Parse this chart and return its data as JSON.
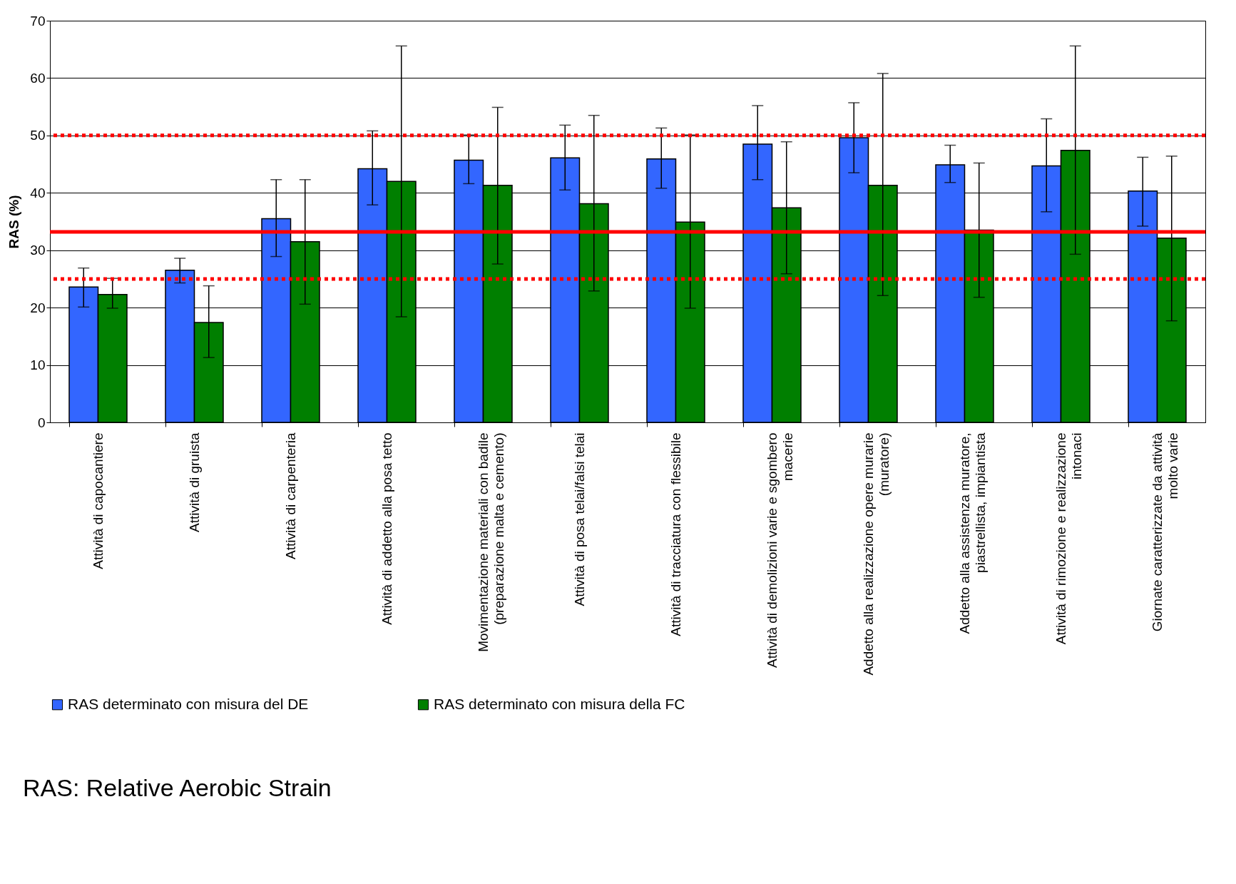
{
  "chart_data": {
    "type": "bar",
    "ylabel": "RAS (%)",
    "categories": [
      "Attività di capocantiere",
      "Attività di gruista",
      "Attività di carpenteria",
      "Attività di addetto alla posa tetto",
      "Movimentazione materiali con badile (preparazione malta e cemento)",
      "Attività di posa telai/falsi telai",
      "Attività di tracciatura con flessibile",
      "Attività di demolizioni varie e sgombero macerie",
      "Addetto alla realizzazione opere murarie (muratore)",
      "Addetto alla assistenza muratore, piastrellista, impiantista",
      "Attività di rimozione e realizzazione intonaci",
      "Giornate caratterizzate da attività molto varie"
    ],
    "series": [
      {
        "name": "RAS determinato con misura del DE",
        "color": "#3366ff",
        "values": [
          23.6,
          26.5,
          35.5,
          44.2,
          45.7,
          46.1,
          45.9,
          48.5,
          49.6,
          44.9,
          44.7,
          40.3
        ],
        "errors": [
          [
            20.1,
            26.9
          ],
          [
            24.3,
            28.6
          ],
          [
            28.9,
            42.3
          ],
          [
            37.9,
            50.8
          ],
          [
            41.6,
            50.1
          ],
          [
            40.5,
            51.8
          ],
          [
            40.8,
            51.3
          ],
          [
            42.3,
            55.2
          ],
          [
            43.5,
            55.7
          ],
          [
            41.8,
            48.3
          ],
          [
            36.7,
            52.9
          ],
          [
            34.2,
            46.2
          ]
        ]
      },
      {
        "name": "RAS determinato con misura della FC",
        "color": "#007f00",
        "values": [
          22.3,
          17.4,
          31.5,
          42.0,
          41.3,
          38.1,
          34.9,
          37.4,
          41.3,
          33.5,
          47.4,
          32.1
        ],
        "errors": [
          [
            19.9,
            25.1
          ],
          [
            11.3,
            23.8
          ],
          [
            20.6,
            42.3
          ],
          [
            18.4,
            65.6
          ],
          [
            27.6,
            54.9
          ],
          [
            22.9,
            53.5
          ],
          [
            19.9,
            50.1
          ],
          [
            25.9,
            48.9
          ],
          [
            22.1,
            60.8
          ],
          [
            21.8,
            45.2
          ],
          [
            29.3,
            65.6
          ],
          [
            17.7,
            46.4
          ]
        ]
      }
    ],
    "ylim": [
      0,
      70
    ],
    "yticks": [
      0,
      10,
      20,
      30,
      40,
      50,
      60,
      70
    ],
    "grid": "y",
    "legend": "bottom",
    "ref_lines": [
      {
        "axis": "y",
        "value": 50,
        "color": "#ff0000",
        "line_style": "dotted"
      },
      {
        "axis": "y",
        "value": 25,
        "color": "#ff0000",
        "line_style": "dotted"
      },
      {
        "axis": "y",
        "value": 33.2,
        "color": "#ff0000",
        "line_style": "solid"
      }
    ],
    "annotations": [
      "RAS: Relative Aerobic Strain"
    ]
  }
}
